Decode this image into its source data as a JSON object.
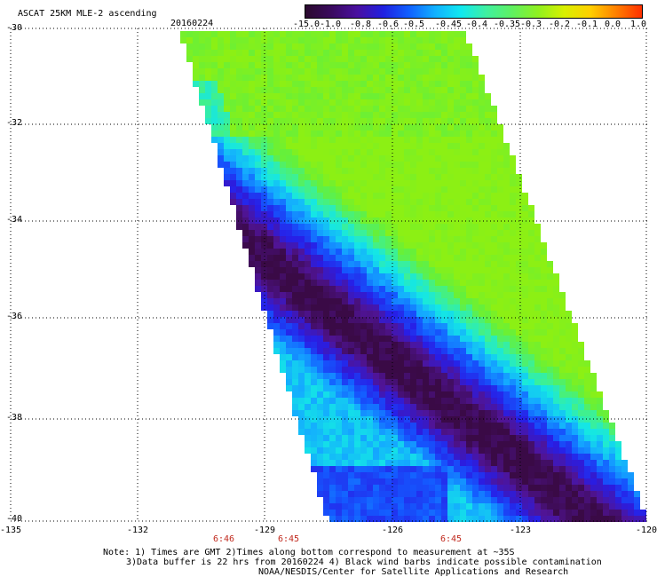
{
  "header": {
    "title": "ASCAT 25KM MLE-2 ascending",
    "date": "20160224"
  },
  "colorbar": {
    "tick_labels": [
      "-15.0",
      "-1.0",
      "-0.8",
      "-0.6",
      "-0.5",
      "-0.45",
      "-0.4",
      "-0.35",
      "-0.3",
      "-0.2",
      "-0.1",
      "0.0",
      "1.0"
    ],
    "colors": [
      "#2b0a2e",
      "#3a0a5e",
      "#4a10a0",
      "#2020e0",
      "#1060ff",
      "#10b0ff",
      "#10e8f0",
      "#40f0a0",
      "#60f060",
      "#90f020",
      "#d8f000",
      "#ffd000",
      "#ff8000",
      "#ff3000"
    ]
  },
  "map": {
    "y_axis_labels": [
      "-30",
      "-32",
      "-34",
      "-36",
      "-38",
      "-40"
    ],
    "x_axis_labels": [
      "-135",
      "-132",
      "-129",
      "-126",
      "-123",
      "-120"
    ],
    "time_labels": [
      "6:46",
      "6:45",
      "6:45"
    ],
    "grid": "dotted",
    "lat_range": [
      -40,
      -30
    ],
    "lon_range": [
      -135,
      -120
    ]
  },
  "footer": {
    "note_line1": "Note: 1) Times are GMT 2)Times along bottom correspond to measurement at ~35S",
    "note_line2": "3)Data buffer is 22 hrs from 20160224 4) Black wind barbs indicate possible contamination",
    "credit": "NOAA/NESDIS/Center for Satellite Applications and Research"
  }
}
